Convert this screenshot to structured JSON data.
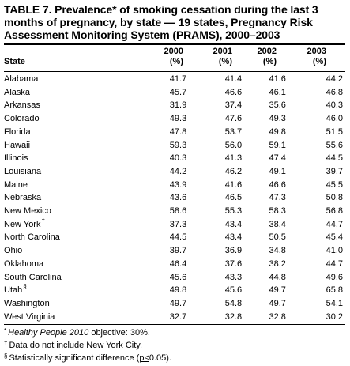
{
  "title": "TABLE 7. Prevalence* of smoking cessation during the last 3 months of pregnancy, by state — 19 states, Pregnancy Risk Assessment Monitoring System (PRAMS), 2000–2003",
  "columns": {
    "state": "State",
    "years": [
      "2000",
      "2001",
      "2002",
      "2003"
    ],
    "unit": "(%)"
  },
  "rows": [
    {
      "state": "Alabama",
      "footnote": "",
      "values": [
        "41.7",
        "41.4",
        "41.6",
        "44.2"
      ]
    },
    {
      "state": "Alaska",
      "footnote": "",
      "values": [
        "45.7",
        "46.6",
        "46.1",
        "46.8"
      ]
    },
    {
      "state": "Arkansas",
      "footnote": "",
      "values": [
        "31.9",
        "37.4",
        "35.6",
        "40.3"
      ]
    },
    {
      "state": "Colorado",
      "footnote": "",
      "values": [
        "49.3",
        "47.6",
        "49.3",
        "46.0"
      ]
    },
    {
      "state": "Florida",
      "footnote": "",
      "values": [
        "47.8",
        "53.7",
        "49.8",
        "51.5"
      ]
    },
    {
      "state": "Hawaii",
      "footnote": "",
      "values": [
        "59.3",
        "56.0",
        "59.1",
        "55.6"
      ]
    },
    {
      "state": "Illinois",
      "footnote": "",
      "values": [
        "40.3",
        "41.3",
        "47.4",
        "44.5"
      ]
    },
    {
      "state": "Louisiana",
      "footnote": "",
      "values": [
        "44.2",
        "46.2",
        "49.1",
        "39.7"
      ]
    },
    {
      "state": "Maine",
      "footnote": "",
      "values": [
        "43.9",
        "41.6",
        "46.6",
        "45.5"
      ]
    },
    {
      "state": "Nebraska",
      "footnote": "",
      "values": [
        "43.6",
        "46.5",
        "47.3",
        "50.8"
      ]
    },
    {
      "state": "New Mexico",
      "footnote": "",
      "values": [
        "58.6",
        "55.3",
        "58.3",
        "56.8"
      ]
    },
    {
      "state": "New York",
      "footnote": "†",
      "values": [
        "37.3",
        "43.4",
        "38.4",
        "44.7"
      ]
    },
    {
      "state": "North Carolina",
      "footnote": "",
      "values": [
        "44.5",
        "43.4",
        "50.5",
        "45.4"
      ]
    },
    {
      "state": "Ohio",
      "footnote": "",
      "values": [
        "39.7",
        "36.9",
        "34.8",
        "41.0"
      ]
    },
    {
      "state": "Oklahoma",
      "footnote": "",
      "values": [
        "46.4",
        "37.6",
        "38.2",
        "44.7"
      ]
    },
    {
      "state": "South Carolina",
      "footnote": "",
      "values": [
        "45.6",
        "43.3",
        "44.8",
        "49.6"
      ]
    },
    {
      "state": "Utah",
      "footnote": "§",
      "values": [
        "49.8",
        "45.6",
        "49.7",
        "65.8"
      ]
    },
    {
      "state": "Washington",
      "footnote": "",
      "values": [
        "49.7",
        "54.8",
        "49.7",
        "54.1"
      ]
    },
    {
      "state": "West Virginia",
      "footnote": "",
      "values": [
        "32.7",
        "32.8",
        "32.8",
        "30.2"
      ]
    }
  ],
  "footnotes": {
    "note1": {
      "symbol": "*",
      "italic": "Healthy People 2010",
      "text": " objective: 30%."
    },
    "note2": {
      "symbol": "†",
      "text": "Data do not include New York City."
    },
    "note3": {
      "symbol": "§",
      "text_before": "Statistically significant difference (",
      "underlined": "p<",
      "text_after": "0.05)."
    }
  }
}
